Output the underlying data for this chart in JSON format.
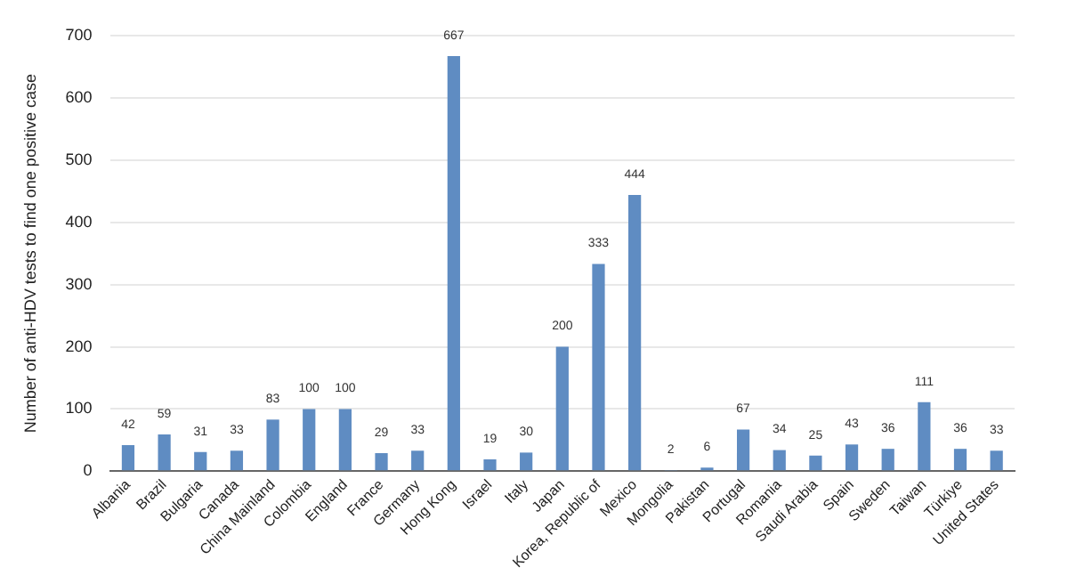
{
  "chart_data": {
    "type": "bar",
    "ylabel": "Number of anti-HDV tests to find one positive case",
    "categories": [
      "Albania",
      "Brazil",
      "Bulgaria",
      "Canada",
      "China Mainland",
      "Colombia",
      "England",
      "France",
      "Germany",
      "Hong Kong",
      "Israel",
      "Italy",
      "Japan",
      "Korea, Republic of",
      "Mexico",
      "Mongolia",
      "Pakistan",
      "Portugal",
      "Romania",
      "Saudi Arabia",
      "Spain",
      "Sweden",
      "Taiwan",
      "Türkiye",
      "United States"
    ],
    "values": [
      42,
      59,
      31,
      33,
      83,
      100,
      100,
      29,
      33,
      667,
      19,
      30,
      200,
      333,
      444,
      2,
      6,
      67,
      34,
      25,
      43,
      36,
      111,
      36,
      33
    ],
    "color": "#5f8cc2",
    "ylim": [
      0,
      700
    ],
    "yticks": [
      0,
      100,
      200,
      300,
      400,
      500,
      600,
      700
    ],
    "grid": "y",
    "legend": false,
    "data_labels": true
  }
}
